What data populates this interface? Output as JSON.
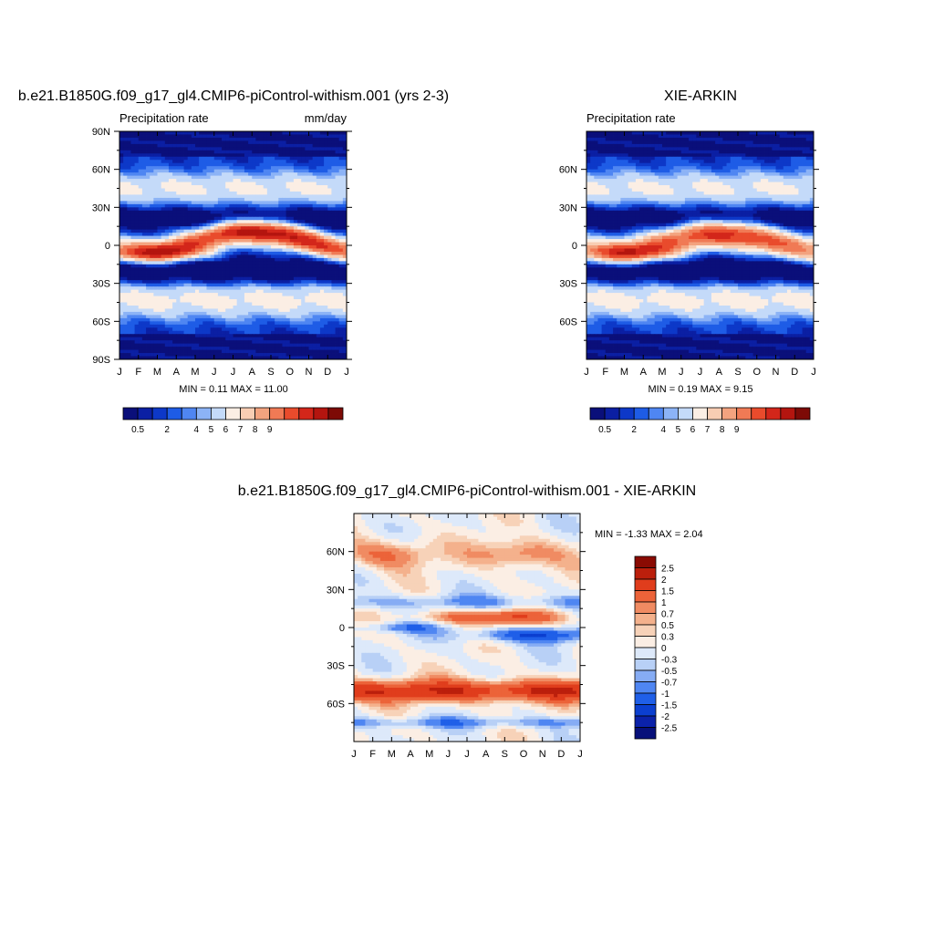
{
  "colors": {
    "seq_palette": [
      "#0a0f7a",
      "#0b1fa3",
      "#0d38c8",
      "#1e5ce6",
      "#4f86f2",
      "#8cb3f6",
      "#c4daf9",
      "#fbeee4",
      "#f8cdb3",
      "#f3a37f",
      "#f07a55",
      "#e94b2c",
      "#d3261a",
      "#b4150f",
      "#7d0a06"
    ],
    "div_palette": [
      "#07107a",
      "#0b22aa",
      "#0b3fd0",
      "#1f5fe8",
      "#4f86f2",
      "#86acf4",
      "#b8d0f6",
      "#dde9fa",
      "#fbeee4",
      "#f7d2b8",
      "#f4b18c",
      "#f08b62",
      "#ec6339",
      "#e03d1c",
      "#bb1f0c",
      "#8a0b03"
    ]
  },
  "chart_data": [
    {
      "type": "heatmap",
      "title": "b.e21.B1850G.f09_g17_gl4.CMIP6-piControl-withism.001 (yrs 2-3)",
      "left_label": "Precipitation rate",
      "right_label": "mm/day",
      "x_tick_labels": [
        "J",
        "F",
        "M",
        "A",
        "M",
        "J",
        "J",
        "A",
        "S",
        "O",
        "N",
        "D",
        "J"
      ],
      "y_tick_labels": [
        "90N",
        "60N",
        "30N",
        "0",
        "30S",
        "60S",
        "90S"
      ],
      "y_tick_values": [
        90,
        60,
        30,
        0,
        -30,
        -60,
        -90
      ],
      "ylim": [
        -90,
        90
      ],
      "stats": "MIN =   0.11 MAX =  11.00",
      "itcz": {
        "amp": 9.8,
        "center_lat": 3,
        "center_shift": 8,
        "width": 7,
        "peak_month": 7.8
      },
      "colorbar_levels": [
        "0.5",
        "1",
        "2",
        "3",
        "4",
        "5",
        "6",
        "7",
        "8",
        "9",
        "10"
      ],
      "colorbar_tick_labels": [
        "0.5",
        "2",
        "4",
        "5",
        "6",
        "7",
        "8",
        "9"
      ],
      "colorbar_tick_index": [
        0,
        2,
        4,
        5,
        6,
        7,
        8,
        9
      ]
    },
    {
      "type": "heatmap",
      "title": "XIE-ARKIN",
      "left_label": "Precipitation rate",
      "right_label": "",
      "x_tick_labels": [
        "J",
        "F",
        "M",
        "A",
        "M",
        "J",
        "J",
        "A",
        "S",
        "O",
        "N",
        "D",
        "J"
      ],
      "y_tick_labels": [
        "60N",
        "30N",
        "0",
        "30S",
        "60S"
      ],
      "y_tick_values": [
        60,
        30,
        0,
        -30,
        -60
      ],
      "ylim": [
        -90,
        90
      ],
      "stats": "MIN =   0.19 MAX =   9.15",
      "itcz": {
        "amp": 8.4,
        "center_lat": 2,
        "center_shift": 7,
        "width": 8,
        "peak_month": 7.5
      },
      "colorbar_levels": [
        "0.5",
        "1",
        "2",
        "3",
        "4",
        "5",
        "6",
        "7",
        "8",
        "9",
        "10"
      ],
      "colorbar_tick_labels": [
        "0.5",
        "2",
        "4",
        "5",
        "6",
        "7",
        "8",
        "9"
      ],
      "colorbar_tick_index": [
        0,
        2,
        4,
        5,
        6,
        7,
        8,
        9
      ]
    },
    {
      "type": "heatmap",
      "title": "b.e21.B1850G.f09_g17_gl4.CMIP6-piControl-withism.001 - XIE-ARKIN",
      "x_tick_labels": [
        "J",
        "F",
        "M",
        "A",
        "M",
        "J",
        "J",
        "A",
        "S",
        "O",
        "N",
        "D",
        "J"
      ],
      "y_tick_labels": [
        "60N",
        "30N",
        "0",
        "30S",
        "60S"
      ],
      "y_tick_values": [
        60,
        30,
        0,
        -30,
        -60
      ],
      "ylim": [
        -90,
        90
      ],
      "stats": "MIN =  -1.33 MAX =   2.04",
      "colorbar_labels": [
        "2.5",
        "2",
        "1.5",
        "1",
        "0.7",
        "0.5",
        "0.3",
        "0",
        "-0.3",
        "-0.5",
        "-0.7",
        "-1",
        "-1.5",
        "-2",
        "-2.5"
      ],
      "colorbar_levels": [
        2.5,
        2,
        1.5,
        1,
        0.7,
        0.5,
        0.3,
        0,
        -0.3,
        -0.5,
        -0.7,
        -1,
        -1.5,
        -2,
        -2.5
      ]
    }
  ]
}
